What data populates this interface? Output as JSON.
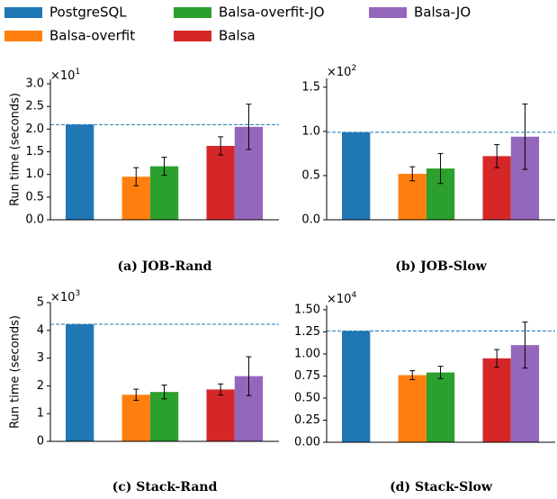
{
  "legend": [
    {
      "name": "PostgreSQL",
      "color": "#1f77b4"
    },
    {
      "name": "Balsa-overfit",
      "color": "#ff7f0e"
    },
    {
      "name": "Balsa-overfit-JO",
      "color": "#2ca02c"
    },
    {
      "name": "Balsa",
      "color": "#d62728"
    },
    {
      "name": "Balsa-JO",
      "color": "#9467bd"
    }
  ],
  "chart_data": [
    {
      "type": "bar",
      "title": "(a) JOB-Rand",
      "ylabel": "Run time (seconds)",
      "offset_text": "×10",
      "offset_exp": "1",
      "ylim": [
        0,
        3.1
      ],
      "yticks": [
        {
          "value": 0,
          "label": "0.0"
        },
        0.5,
        {
          "value": 1,
          "label": "1.0"
        },
        1.5,
        {
          "value": 2,
          "label": "2.0"
        },
        2.5,
        {
          "value": 3,
          "label": "3.0"
        }
      ],
      "reference_line": true,
      "series": [
        {
          "values": [
            2.1
          ]
        },
        {
          "values": [
            0.95
          ],
          "errors": [
            0.2
          ]
        },
        {
          "values": [
            1.18
          ],
          "errors": [
            0.2
          ]
        },
        {
          "values": [
            1.63
          ],
          "errors": [
            0.2
          ]
        },
        {
          "values": [
            2.05
          ],
          "errors": [
            0.5
          ]
        }
      ]
    },
    {
      "type": "bar",
      "title": "(b) JOB-Slow",
      "offset_text": "×10",
      "offset_exp": "2",
      "ylim": [
        0,
        1.6
      ],
      "yticks": [
        {
          "value": 0,
          "label": "0.0"
        },
        0.5,
        {
          "value": 1,
          "label": "1.0"
        },
        1.5
      ],
      "reference_line": true,
      "series": [
        {
          "values": [
            0.99
          ]
        },
        {
          "values": [
            0.52
          ],
          "errors": [
            0.08
          ]
        },
        {
          "values": [
            0.58
          ],
          "errors": [
            0.17
          ]
        },
        {
          "values": [
            0.72
          ],
          "errors": [
            0.13
          ]
        },
        {
          "values": [
            0.94
          ],
          "errors": [
            0.37
          ]
        }
      ]
    },
    {
      "type": "bar",
      "title": "(c) Stack-Rand",
      "ylabel": "Run time (seconds)",
      "offset_text": "×10",
      "offset_exp": "3",
      "ylim": [
        0,
        5
      ],
      "yticks": [
        0,
        1,
        2,
        3,
        4,
        5
      ],
      "reference_line": true,
      "series": [
        {
          "values": [
            4.22
          ]
        },
        {
          "values": [
            1.68
          ],
          "errors": [
            0.2
          ]
        },
        {
          "values": [
            1.78
          ],
          "errors": [
            0.25
          ]
        },
        {
          "values": [
            1.87
          ],
          "errors": [
            0.2
          ]
        },
        {
          "values": [
            2.35
          ],
          "errors": [
            0.7
          ]
        }
      ]
    },
    {
      "type": "bar",
      "title": "(d) Stack-Slow",
      "offset_text": "×10",
      "offset_exp": "4",
      "ylim": [
        0,
        1.55
      ],
      "yticks": [
        {
          "value": 0,
          "label": "0.00"
        },
        0.25,
        {
          "value": 0.5,
          "label": "0.50"
        },
        0.75,
        {
          "value": 1,
          "label": "1.00"
        },
        1.25,
        {
          "value": 1.5,
          "label": "1.50"
        }
      ],
      "reference_line": true,
      "series": [
        {
          "values": [
            1.26
          ]
        },
        {
          "values": [
            0.76
          ],
          "errors": [
            0.05
          ]
        },
        {
          "values": [
            0.79
          ],
          "errors": [
            0.07
          ]
        },
        {
          "values": [
            0.95
          ],
          "errors": [
            0.1
          ]
        },
        {
          "values": [
            1.1
          ],
          "errors": [
            0.26
          ]
        }
      ]
    }
  ]
}
